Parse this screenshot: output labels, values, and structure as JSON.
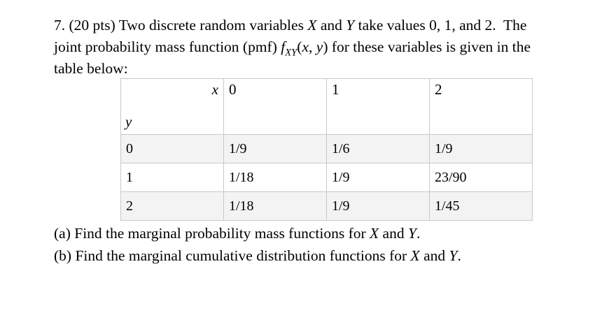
{
  "problem": {
    "line1": [
      "7. (20 pts) Two discrete random variables ",
      "X",
      " and ",
      "Y",
      " take values 0, 1, and 2.  The"
    ],
    "line2": [
      "joint probability mass function (pmf) ",
      "f",
      "XY",
      "(",
      "x",
      ", ",
      "y",
      ") for these variables is given in the"
    ],
    "line3": "table below:"
  },
  "table": {
    "corner_x": "x",
    "corner_y": "y",
    "col_headers": [
      "0",
      "1",
      "2"
    ],
    "rows": [
      {
        "label": "0",
        "values": [
          "1/9",
          "1/6",
          "1/9"
        ]
      },
      {
        "label": "1",
        "values": [
          "1/18",
          "1/9",
          "23/90"
        ]
      },
      {
        "label": "2",
        "values": [
          "1/18",
          "1/9",
          "1/45"
        ]
      }
    ]
  },
  "questions": {
    "a": [
      "(a) Find the marginal probability mass functions for ",
      "X",
      " and ",
      "Y",
      "."
    ],
    "b": [
      "(b) Find the marginal cumulative distribution functions for ",
      "X",
      " and ",
      "Y",
      "."
    ]
  },
  "colors": {
    "background": "#ffffff",
    "text": "#000000",
    "table_border": "#c8c8c8",
    "row_shading": "#f3f3f3"
  }
}
